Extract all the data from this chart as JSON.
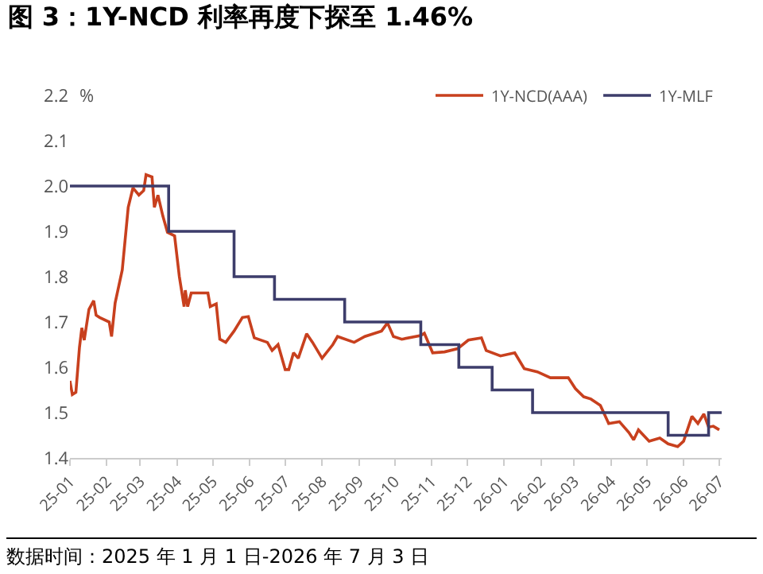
{
  "chart_data": {
    "type": "line",
    "title": "图 3：1Y-NCD 利率再度下探至 1.46%",
    "ylabel": "%",
    "annotations": [
      "数据时间：2025 年 1 月 1 日-2026 年 7 月 3 日"
    ],
    "series": [
      {
        "name": "1Y-NCD(AAA)",
        "color": "#c8401e",
        "x": [
          "2025-01-01",
          "2025-01-03",
          "2025-01-06",
          "2025-01-09",
          "2025-01-11",
          "2025-01-13",
          "2025-01-17",
          "2025-01-21",
          "2025-01-23",
          "2025-01-26",
          "2025-02-03",
          "2025-02-05",
          "2025-02-08",
          "2025-02-14",
          "2025-02-19",
          "2025-02-23",
          "2025-02-28",
          "2025-03-04",
          "2025-03-06",
          "2025-03-11",
          "2025-03-13",
          "2025-03-16",
          "2025-03-20",
          "2025-03-24",
          "2025-03-30",
          "2025-04-03",
          "2025-04-07",
          "2025-04-08",
          "2025-04-10",
          "2025-04-13",
          "2025-04-27",
          "2025-04-29",
          "2025-05-04",
          "2025-05-07",
          "2025-05-12",
          "2025-05-19",
          "2025-05-26",
          "2025-05-31",
          "2025-06-05",
          "2025-06-16",
          "2025-06-20",
          "2025-06-25",
          "2025-07-01",
          "2025-07-04",
          "2025-07-08",
          "2025-07-12",
          "2025-07-19",
          "2025-07-24",
          "2025-08-01",
          "2025-08-10",
          "2025-08-14",
          "2025-08-28",
          "2025-09-06",
          "2025-09-20",
          "2025-09-25",
          "2025-09-30",
          "2025-10-07",
          "2025-10-23",
          "2025-10-26",
          "2025-11-02",
          "2025-11-12",
          "2025-11-23",
          "2025-12-02",
          "2025-12-13",
          "2025-12-17",
          "2025-12-29",
          "2026-01-10",
          "2026-01-18",
          "2026-01-29",
          "2026-02-09",
          "2026-02-24",
          "2026-03-02",
          "2026-03-09",
          "2026-03-15",
          "2026-03-23",
          "2026-03-30",
          "2026-04-08",
          "2026-04-16",
          "2026-04-20",
          "2026-04-24",
          "2026-05-03",
          "2026-05-12",
          "2026-05-19",
          "2026-05-27",
          "2026-06-01",
          "2026-06-08",
          "2026-06-13",
          "2026-06-18",
          "2026-06-22",
          "2026-06-26",
          "2026-07-01"
        ],
        "values": [
          1.57,
          1.54,
          1.545,
          1.644,
          1.687,
          1.66,
          1.728,
          1.747,
          1.715,
          1.71,
          1.7,
          1.668,
          1.742,
          1.815,
          1.953,
          1.996,
          1.98,
          1.99,
          2.025,
          2.02,
          1.953,
          1.98,
          1.935,
          1.898,
          1.89,
          1.8,
          1.734,
          1.77,
          1.734,
          1.764,
          1.764,
          1.734,
          1.74,
          1.662,
          1.655,
          1.68,
          1.71,
          1.712,
          1.665,
          1.655,
          1.637,
          1.65,
          1.595,
          1.595,
          1.632,
          1.62,
          1.674,
          1.655,
          1.62,
          1.65,
          1.668,
          1.655,
          1.668,
          1.68,
          1.698,
          1.668,
          1.662,
          1.67,
          1.675,
          1.632,
          1.634,
          1.641,
          1.66,
          1.665,
          1.637,
          1.625,
          1.632,
          1.597,
          1.59,
          1.577,
          1.577,
          1.553,
          1.535,
          1.53,
          1.516,
          1.476,
          1.48,
          1.456,
          1.44,
          1.462,
          1.437,
          1.444,
          1.431,
          1.425,
          1.437,
          1.492,
          1.476,
          1.497,
          1.468,
          1.47,
          1.462
        ]
      },
      {
        "name": "1Y-MLF",
        "color": "#3d3d6b",
        "type": "step",
        "x": [
          "2025-01-01",
          "2025-03-25",
          "2025-05-19",
          "2025-06-22",
          "2025-08-20",
          "2025-10-23",
          "2025-11-24",
          "2025-12-22",
          "2026-01-25",
          "2026-05-19",
          "2026-06-22",
          "2026-07-03"
        ],
        "values": [
          2.0,
          1.9,
          1.8,
          1.75,
          1.7,
          1.65,
          1.6,
          1.55,
          1.5,
          1.45,
          1.5,
          1.5
        ]
      }
    ],
    "xlim": [
      "2025-01-01",
      "2026-07-03"
    ],
    "xticks": [
      {
        "value": "2025-01-01",
        "label": "25-01"
      },
      {
        "value": "2025-02-01",
        "label": "25-02"
      },
      {
        "value": "2025-03-01",
        "label": "25-03"
      },
      {
        "value": "2025-04-01",
        "label": "25-04"
      },
      {
        "value": "2025-05-01",
        "label": "25-05"
      },
      {
        "value": "2025-06-01",
        "label": "25-06"
      },
      {
        "value": "2025-07-01",
        "label": "25-07"
      },
      {
        "value": "2025-08-01",
        "label": "25-08"
      },
      {
        "value": "2025-09-01",
        "label": "25-09"
      },
      {
        "value": "2025-10-01",
        "label": "25-10"
      },
      {
        "value": "2025-11-01",
        "label": "25-11"
      },
      {
        "value": "2025-12-01",
        "label": "25-12"
      },
      {
        "value": "2026-01-01",
        "label": "26-01"
      },
      {
        "value": "2026-02-01",
        "label": "26-02"
      },
      {
        "value": "2026-03-01",
        "label": "26-03"
      },
      {
        "value": "2026-04-01",
        "label": "26-04"
      },
      {
        "value": "2026-05-01",
        "label": "26-05"
      },
      {
        "value": "2026-06-01",
        "label": "26-06"
      },
      {
        "value": "2026-07-01",
        "label": "26-07"
      }
    ],
    "ylim": [
      1.4,
      2.2
    ],
    "yticks": [
      1.4,
      1.5,
      1.6,
      1.7,
      1.8,
      1.9,
      {
        "value": 2,
        "label": "2.0"
      },
      2.1,
      2.2
    ],
    "grid": false,
    "legend": "top right"
  }
}
